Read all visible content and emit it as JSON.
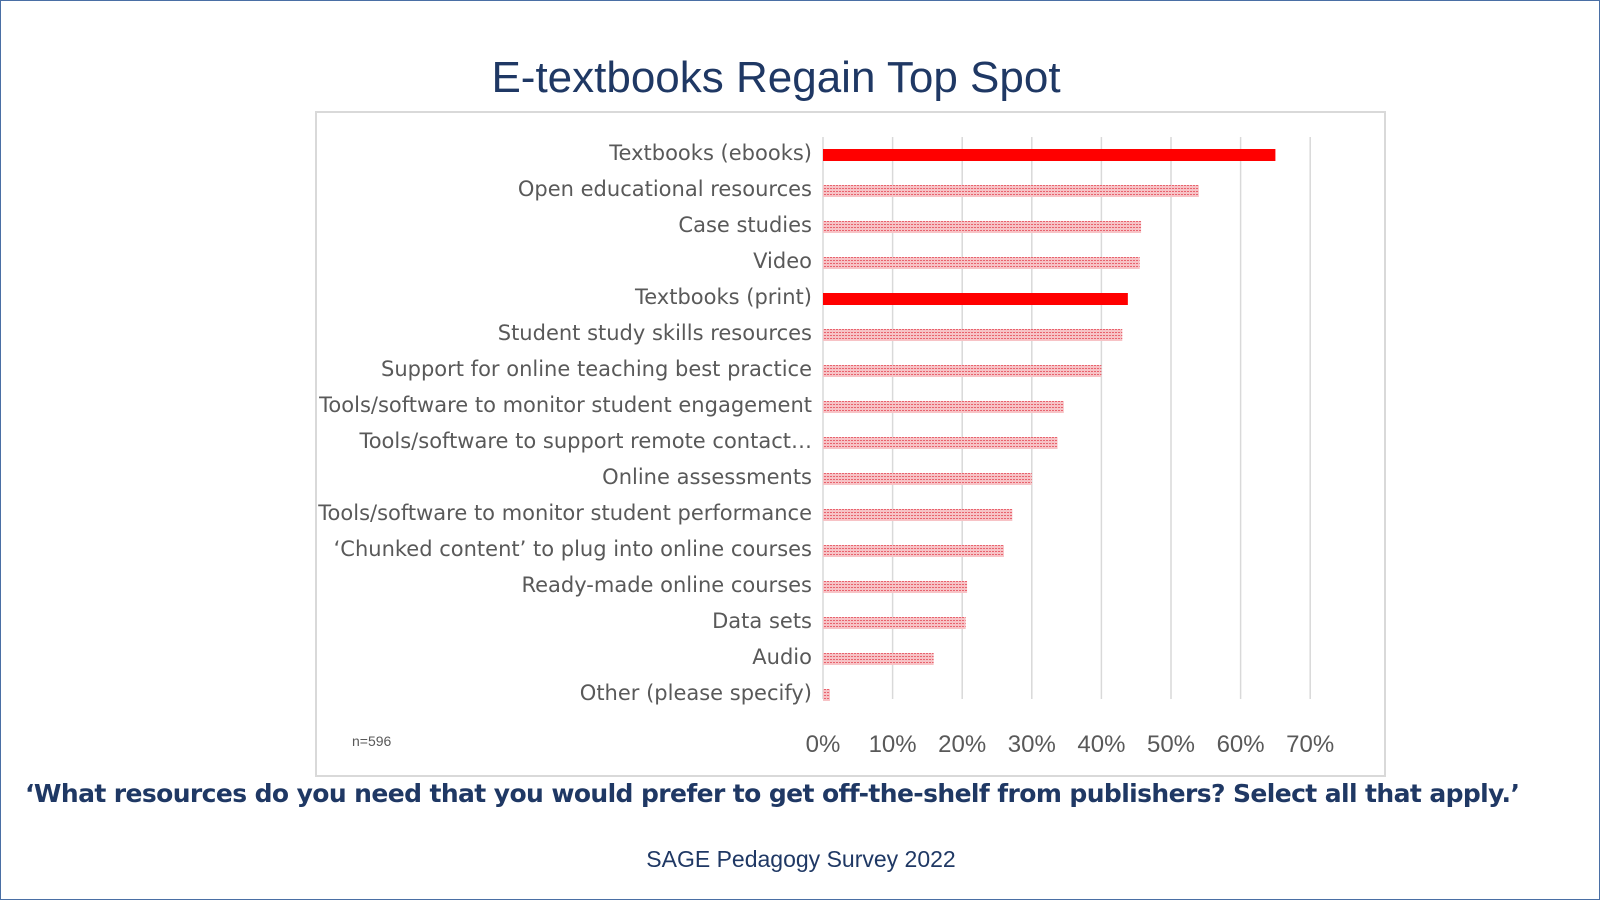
{
  "title": "E-textbooks Regain Top Spot",
  "question": "‘What resources do you need that you would prefer to get off-the-shelf from publishers? Select all that apply.’",
  "source": "SAGE Pedagogy Survey 2022",
  "colors": {
    "highlight": "#ff0000",
    "pattern": "#f4a0a6",
    "title": "#1f3864",
    "grid": "#d9d9d9"
  },
  "chart_data": {
    "type": "bar",
    "orientation": "horizontal",
    "note": "n=596",
    "categories": [
      "Textbooks (ebooks)",
      "Open educational resources",
      "Case studies",
      "Video",
      "Textbooks (print)",
      "Student study skills resources",
      "Support for online teaching best practice",
      "Tools/software to monitor student engagement",
      "Tools/software to support remote contact…",
      "Online assessments",
      "Tools/software to monitor student performance",
      "‘Chunked content’ to plug into online courses",
      "Ready-made online courses",
      "Data sets",
      "Audio",
      "Other (please specify)"
    ],
    "values": [
      65,
      54,
      45.7,
      45.5,
      43.8,
      43,
      40,
      34.6,
      33.7,
      30,
      27.2,
      26,
      20.7,
      20.5,
      15.9,
      1
    ],
    "highlighted": [
      true,
      false,
      false,
      false,
      true,
      false,
      false,
      false,
      false,
      false,
      false,
      false,
      false,
      false,
      false,
      false
    ],
    "xlim": [
      0,
      70
    ],
    "xticks": [
      "0%",
      "10%",
      "20%",
      "30%",
      "40%",
      "50%",
      "60%",
      "70%"
    ],
    "grid": true
  }
}
